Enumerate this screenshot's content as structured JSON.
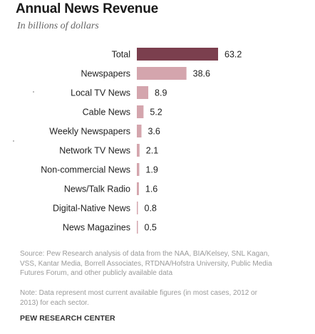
{
  "chart_data": {
    "type": "bar",
    "orientation": "horizontal",
    "title": "Annual News Revenue",
    "subtitle": "In billions of dollars",
    "categories": [
      "Total",
      "Newspapers",
      "Local TV News",
      "Cable News",
      "Weekly Newspapers",
      "Network TV News",
      "Non-commercial News",
      "News/Talk Radio",
      "Digital-Native News",
      "News Magazines"
    ],
    "values": [
      63.2,
      38.6,
      8.9,
      5.2,
      3.6,
      2.1,
      1.9,
      1.6,
      0.8,
      0.5
    ],
    "value_labels": [
      "63.2",
      "38.6",
      "8.9",
      "5.2",
      "3.6",
      "2.1",
      "1.9",
      "1.6",
      "0.8",
      "0.5"
    ],
    "xlim": [
      0,
      63.2
    ],
    "grid": false,
    "colors": {
      "highlight": "#7b3f4e",
      "bars": "#d4a5ad"
    }
  },
  "source_text": "Source: Pew Research analysis of data from the NAA, BIA/Kelsey, SNL Kagan, VSS, Kantar Media, Borrell Associates, RTDNA/Hofstra University, Public Media Futures Forum, and other publicly available data",
  "note_text": "Note: Data represent most current available figures (in most cases, 2012 or 2013) for each sector.",
  "org_name": "PEW RESEARCH CENTER"
}
